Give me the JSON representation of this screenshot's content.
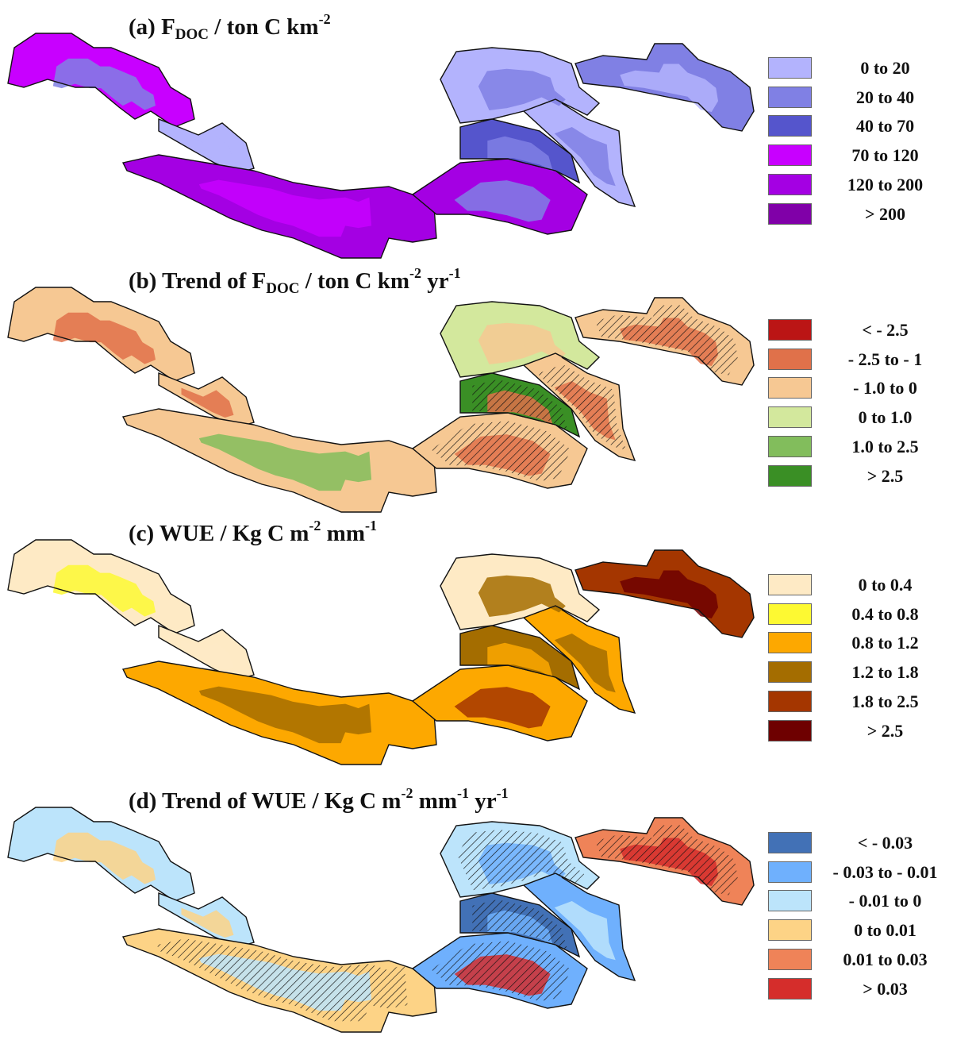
{
  "panels": [
    {
      "title": {
        "pre": "(a) F",
        "sub": "DOC",
        "mid": " / ton C km",
        "sup": "-2",
        "post": ""
      },
      "legend": [
        {
          "label": "0 to 20",
          "color": "#b3b3fd"
        },
        {
          "label": "20 to 40",
          "color": "#8080e4"
        },
        {
          "label": "40 to 70",
          "color": "#5555cc"
        },
        {
          "label": "70 to 120",
          "color": "#c800ff"
        },
        {
          "label": "120 to 200",
          "color": "#a400e3"
        },
        {
          "label": "> 200",
          "color": "#8000a8"
        }
      ],
      "basin_classes": {
        "indus": [
          3,
          1
        ],
        "ganges": [
          4,
          3
        ],
        "brahmaputra": [
          4,
          1
        ],
        "middle": [
          2,
          1
        ],
        "yangtze": [
          0,
          1
        ],
        "yellow": [
          0,
          1
        ],
        "east": [
          1,
          0
        ],
        "small": [
          0,
          0
        ]
      },
      "hatched": []
    },
    {
      "title": {
        "pre": "(b)  Trend of F",
        "sub": "DOC",
        "mid": " / ton C km",
        "sup": "-2",
        "post": " yr",
        "sup2": "-1"
      },
      "legend": [
        {
          "label": "< - 2.5",
          "color": "#bb1515"
        },
        {
          "label": "- 2.5 to  - 1",
          "color": "#e0714a"
        },
        {
          "label": "- 1.0 to 0",
          "color": "#f6c893"
        },
        {
          "label": "0 to 1.0",
          "color": "#d3e89d"
        },
        {
          "label": "1.0 to 2.5",
          "color": "#82bd5c"
        },
        {
          "label": "> 2.5",
          "color": "#3a8f25"
        }
      ],
      "basin_classes": {
        "indus": [
          2,
          1
        ],
        "ganges": [
          2,
          4
        ],
        "brahmaputra": [
          2,
          1
        ],
        "middle": [
          5,
          1
        ],
        "yangtze": [
          2,
          1
        ],
        "yellow": [
          3,
          2
        ],
        "east": [
          2,
          1
        ],
        "small": [
          2,
          1
        ]
      },
      "hatched": [
        "yangtze",
        "east",
        "brahmaputra",
        "middle"
      ]
    },
    {
      "title": {
        "pre": "(c)  WUE / Kg C m",
        "sub": "",
        "mid": "",
        "sup": "-2",
        "post": " mm",
        "sup2": "-1"
      },
      "legend": [
        {
          "label": "0 to 0.4",
          "color": "#feeac5"
        },
        {
          "label": "0.4 to 0.8",
          "color": "#fdf932"
        },
        {
          "label": "0.8 to 1.2",
          "color": "#fda800"
        },
        {
          "label": "1.2 to 1.8",
          "color": "#a46d00"
        },
        {
          "label": "1.8 to 2.5",
          "color": "#a43600"
        },
        {
          "label": "> 2.5",
          "color": "#6e0000"
        }
      ],
      "basin_classes": {
        "indus": [
          0,
          1
        ],
        "ganges": [
          2,
          3
        ],
        "brahmaputra": [
          2,
          4
        ],
        "middle": [
          3,
          2
        ],
        "yangtze": [
          2,
          3
        ],
        "yellow": [
          0,
          3
        ],
        "east": [
          4,
          5
        ],
        "small": [
          0,
          0
        ]
      },
      "hatched": []
    },
    {
      "title": {
        "pre": "(d)  Trend of WUE / Kg C m",
        "sub": "",
        "mid": "",
        "sup": "-2",
        "post": " mm",
        "sup2": "-1",
        "post2": " yr",
        "sup3": "-1"
      },
      "legend": [
        {
          "label": "< - 0.03",
          "color": "#4271b6"
        },
        {
          "label": "- 0.03 to  - 0.01",
          "color": "#6fb0fd"
        },
        {
          "label": "- 0.01 to 0",
          "color": "#bce4fb"
        },
        {
          "label": "0 to 0.01",
          "color": "#fdd386"
        },
        {
          "label": "0.01 to 0.03",
          "color": "#ef8358"
        },
        {
          "label": "> 0.03",
          "color": "#d52d2b"
        }
      ],
      "basin_classes": {
        "indus": [
          2,
          3
        ],
        "ganges": [
          3,
          2
        ],
        "brahmaputra": [
          1,
          5
        ],
        "middle": [
          0,
          1
        ],
        "yangtze": [
          1,
          2
        ],
        "yellow": [
          2,
          1
        ],
        "east": [
          4,
          5
        ],
        "small": [
          2,
          3
        ]
      },
      "hatched": [
        "yellow",
        "middle",
        "east",
        "brahmaputra",
        "ganges"
      ]
    }
  ]
}
